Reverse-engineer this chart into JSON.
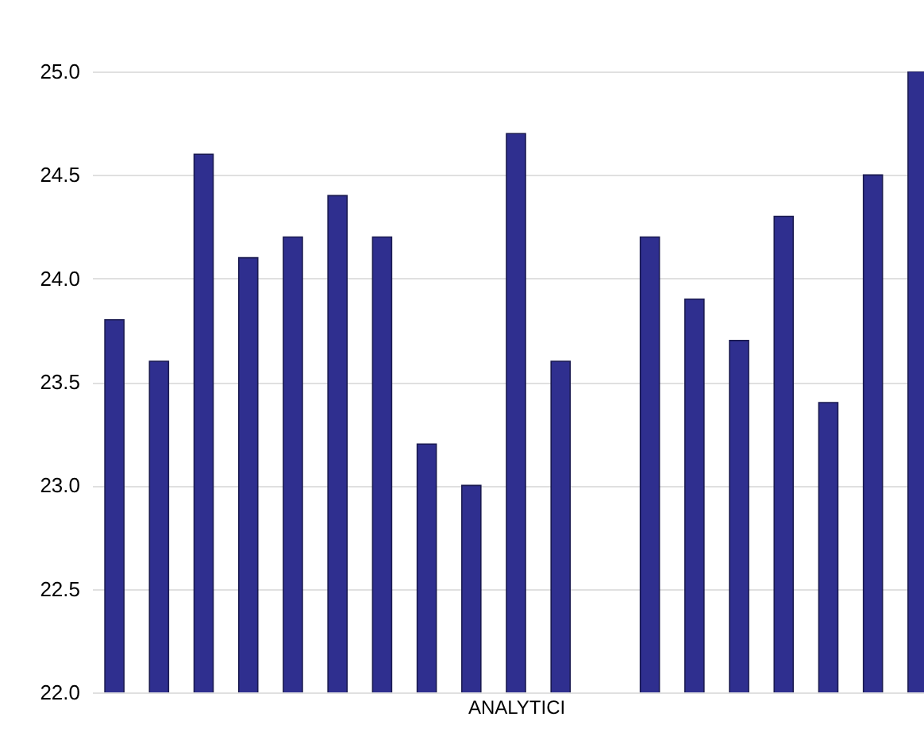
{
  "chart_data": {
    "type": "bar",
    "xlabel": "ANALYTICI",
    "categories": [
      null,
      null,
      null,
      null,
      null,
      null,
      null,
      null,
      null,
      null,
      null,
      null,
      null,
      null,
      null,
      null,
      null,
      null,
      null
    ],
    "values": [
      23.8,
      23.6,
      24.6,
      24.1,
      24.2,
      24.4,
      24.2,
      23.2,
      23.0,
      24.7,
      23.6,
      null,
      24.2,
      23.9,
      23.7,
      24.3,
      23.4,
      24.5,
      25.0
    ],
    "color": "#2f2f8f",
    "ylim": [
      22.0,
      25.0
    ],
    "yticks": [
      {
        "value": 22,
        "label": "22.0"
      },
      {
        "value": 22.5,
        "label": "22.5"
      },
      {
        "value": 23,
        "label": "23.0"
      },
      {
        "value": 23.5,
        "label": "23.5"
      },
      {
        "value": 24,
        "label": "24.0"
      },
      {
        "value": 24.5,
        "label": "24.5"
      },
      {
        "value": 25,
        "label": "25.0"
      }
    ],
    "grid": "y",
    "tick_labels": "y"
  }
}
